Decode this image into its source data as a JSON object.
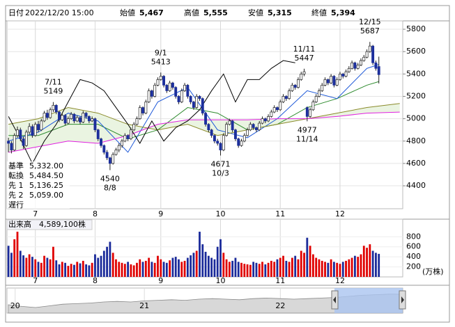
{
  "header": {
    "fields": [
      {
        "label": "日付",
        "value": "2022/12/20 15:00"
      },
      {
        "label": "始値",
        "value": "5,467"
      },
      {
        "label": "高値",
        "value": "5,555",
        "color": "#e00000"
      },
      {
        "label": "安値",
        "value": "5,315",
        "color": "#008000"
      },
      {
        "label": "終値",
        "value": "5,394"
      }
    ]
  },
  "chart_data": {
    "type": "candlestick",
    "xlim": [
      -0.5,
      132
    ],
    "ylim": [
      4195,
      5875
    ],
    "yticks": [
      4400,
      4600,
      4800,
      5000,
      5200,
      5400,
      5600,
      5800
    ],
    "grid": true,
    "up_color": "#ffffff",
    "down_color": "#1c2f9c",
    "month_ticks": [
      {
        "value": 9,
        "label": "7"
      },
      {
        "value": 29,
        "label": "8"
      },
      {
        "value": 51,
        "label": "9"
      },
      {
        "value": 71,
        "label": "10"
      },
      {
        "value": 91,
        "label": "11"
      },
      {
        "value": 111,
        "label": "12"
      }
    ],
    "ohlc": [
      [
        4800,
        4830,
        4700,
        4780
      ],
      [
        4780,
        4800,
        4690,
        4720
      ],
      [
        4720,
        4870,
        4710,
        4850
      ],
      [
        4850,
        4930,
        4830,
        4900
      ],
      [
        4900,
        4920,
        4800,
        4820
      ],
      [
        4820,
        4840,
        4730,
        4760
      ],
      [
        4760,
        4900,
        4750,
        4880
      ],
      [
        4880,
        4960,
        4860,
        4930
      ],
      [
        4930,
        4950,
        4830,
        4850
      ],
      [
        4850,
        4970,
        4840,
        4950
      ],
      [
        4950,
        4980,
        4880,
        4900
      ],
      [
        4900,
        5000,
        4890,
        4980
      ],
      [
        4980,
        5070,
        4970,
        5050
      ],
      [
        5050,
        5080,
        4990,
        5010
      ],
      [
        5010,
        5100,
        5000,
        5080
      ],
      [
        5080,
        5149,
        5060,
        5120
      ],
      [
        5120,
        5130,
        5040,
        5060
      ],
      [
        5060,
        5070,
        4970,
        4990
      ],
      [
        4990,
        5050,
        4980,
        5030
      ],
      [
        5030,
        5040,
        4940,
        4960
      ],
      [
        4960,
        5020,
        4950,
        5000
      ],
      [
        5000,
        5060,
        4990,
        5040
      ],
      [
        5040,
        5050,
        4960,
        4980
      ],
      [
        4980,
        5030,
        4970,
        5010
      ],
      [
        5010,
        5020,
        4950,
        4970
      ],
      [
        4970,
        5070,
        4960,
        5050
      ],
      [
        5050,
        5060,
        5000,
        5020
      ],
      [
        5020,
        5030,
        4960,
        4980
      ],
      [
        4980,
        5020,
        4970,
        5000
      ],
      [
        5000,
        5010,
        4880,
        4900
      ],
      [
        4900,
        4910,
        4800,
        4820
      ],
      [
        4820,
        4830,
        4740,
        4760
      ],
      [
        4760,
        4770,
        4680,
        4700
      ],
      [
        4700,
        4720,
        4630,
        4650
      ],
      [
        4650,
        4660,
        4540,
        4600
      ],
      [
        4600,
        4700,
        4590,
        4680
      ],
      [
        4680,
        4740,
        4670,
        4720
      ],
      [
        4720,
        4780,
        4700,
        4760
      ],
      [
        4760,
        4820,
        4740,
        4800
      ],
      [
        4800,
        4870,
        4790,
        4850
      ],
      [
        4850,
        4860,
        4800,
        4820
      ],
      [
        4820,
        4920,
        4810,
        4900
      ],
      [
        4900,
        4970,
        4890,
        4950
      ],
      [
        4950,
        5020,
        4940,
        5000
      ],
      [
        5000,
        5120,
        4990,
        5100
      ],
      [
        5100,
        5110,
        5030,
        5050
      ],
      [
        5050,
        5170,
        5040,
        5150
      ],
      [
        5150,
        5270,
        5140,
        5250
      ],
      [
        5250,
        5260,
        5180,
        5200
      ],
      [
        5200,
        5320,
        5190,
        5300
      ],
      [
        5300,
        5370,
        5290,
        5350
      ],
      [
        5350,
        5413,
        5340,
        5380
      ],
      [
        5380,
        5390,
        5280,
        5300
      ],
      [
        5300,
        5310,
        5230,
        5250
      ],
      [
        5250,
        5340,
        5240,
        5320
      ],
      [
        5320,
        5330,
        5260,
        5280
      ],
      [
        5280,
        5290,
        5180,
        5200
      ],
      [
        5200,
        5210,
        5130,
        5150
      ],
      [
        5150,
        5270,
        5140,
        5250
      ],
      [
        5250,
        5320,
        5240,
        5300
      ],
      [
        5300,
        5310,
        5180,
        5200
      ],
      [
        5200,
        5210,
        5130,
        5150
      ],
      [
        5150,
        5160,
        5080,
        5100
      ],
      [
        5100,
        5220,
        5090,
        5200
      ],
      [
        5200,
        5210,
        5160,
        5180
      ],
      [
        5180,
        5190,
        5030,
        5050
      ],
      [
        5050,
        5060,
        4930,
        4950
      ],
      [
        4950,
        4960,
        4880,
        4900
      ],
      [
        4900,
        4910,
        4830,
        4850
      ],
      [
        4850,
        4860,
        4780,
        4800
      ],
      [
        4800,
        4820,
        4760,
        4780
      ],
      [
        4780,
        4790,
        4671,
        4720
      ],
      [
        4720,
        4870,
        4710,
        4850
      ],
      [
        4850,
        4970,
        4840,
        4950
      ],
      [
        4950,
        5000,
        4940,
        4980
      ],
      [
        4980,
        4990,
        4880,
        4900
      ],
      [
        4900,
        4910,
        4800,
        4820
      ],
      [
        4820,
        4830,
        4740,
        4760
      ],
      [
        4760,
        4820,
        4750,
        4800
      ],
      [
        4800,
        4870,
        4790,
        4850
      ],
      [
        4850,
        4920,
        4840,
        4900
      ],
      [
        4900,
        4970,
        4890,
        4950
      ],
      [
        4950,
        4960,
        4900,
        4920
      ],
      [
        4920,
        4930,
        4880,
        4900
      ],
      [
        4900,
        4980,
        4890,
        4960
      ],
      [
        4960,
        5020,
        4950,
        5000
      ],
      [
        5000,
        5010,
        4960,
        4980
      ],
      [
        4980,
        5040,
        4970,
        5020
      ],
      [
        5020,
        5080,
        5010,
        5060
      ],
      [
        5060,
        5120,
        5050,
        5100
      ],
      [
        5100,
        5110,
        5060,
        5080
      ],
      [
        5080,
        5170,
        5070,
        5150
      ],
      [
        5150,
        5220,
        5140,
        5200
      ],
      [
        5200,
        5210,
        5160,
        5180
      ],
      [
        5180,
        5270,
        5170,
        5250
      ],
      [
        5250,
        5320,
        5240,
        5300
      ],
      [
        5300,
        5310,
        5260,
        5280
      ],
      [
        5280,
        5370,
        5270,
        5350
      ],
      [
        5350,
        5420,
        5340,
        5400
      ],
      [
        5400,
        5447,
        5380,
        5420
      ],
      [
        5100,
        5110,
        4977,
        5020
      ],
      [
        5020,
        5100,
        5010,
        5080
      ],
      [
        5080,
        5170,
        5070,
        5150
      ],
      [
        5150,
        5220,
        5140,
        5200
      ],
      [
        5200,
        5270,
        5190,
        5250
      ],
      [
        5250,
        5320,
        5240,
        5300
      ],
      [
        5300,
        5370,
        5290,
        5350
      ],
      [
        5350,
        5360,
        5300,
        5320
      ],
      [
        5320,
        5400,
        5310,
        5380
      ],
      [
        5380,
        5390,
        5280,
        5300
      ],
      [
        5300,
        5370,
        5290,
        5350
      ],
      [
        5350,
        5420,
        5340,
        5400
      ],
      [
        5400,
        5410,
        5360,
        5380
      ],
      [
        5380,
        5440,
        5370,
        5420
      ],
      [
        5420,
        5470,
        5410,
        5450
      ],
      [
        5450,
        5520,
        5440,
        5500
      ],
      [
        5500,
        5510,
        5430,
        5450
      ],
      [
        5450,
        5500,
        5440,
        5480
      ],
      [
        5480,
        5540,
        5470,
        5520
      ],
      [
        5520,
        5570,
        5510,
        5550
      ],
      [
        5550,
        5620,
        5540,
        5600
      ],
      [
        5600,
        5687,
        5590,
        5650
      ],
      [
        5650,
        5660,
        5480,
        5500
      ],
      [
        5500,
        5520,
        5430,
        5450
      ],
      [
        5467,
        5555,
        5315,
        5394
      ]
    ],
    "annotations": [
      {
        "index": 15,
        "date": "7/11",
        "value": 5149,
        "position": "above"
      },
      {
        "index": 34,
        "date": "8/8",
        "value": 4540,
        "position": "below"
      },
      {
        "index": 51,
        "date": "9/1",
        "value": 5413,
        "position": "above"
      },
      {
        "index": 71,
        "date": "10/3",
        "value": 4671,
        "position": "below"
      },
      {
        "index": 99,
        "date": "11/11",
        "value": 5447,
        "position": "above"
      },
      {
        "index": 100,
        "date": "11/14",
        "value": 4977,
        "position": "below"
      },
      {
        "index": 121,
        "date": "12/15",
        "value": 5687,
        "position": "above"
      }
    ],
    "series": [
      {
        "name": "基準",
        "color": "#2e8b2e",
        "value": 5332,
        "value_label": "5,332.00",
        "x": [
          0,
          10,
          20,
          30,
          40,
          50,
          60,
          70,
          80,
          90,
          100,
          110,
          120,
          124
        ],
        "values": [
          4850,
          4850,
          4950,
          4950,
          4820,
          4900,
          5100,
          5050,
          4900,
          4950,
          5100,
          5180,
          5300,
          5332
        ]
      },
      {
        "name": "転換",
        "color": "#1a56d8",
        "value": 5484.5,
        "value_label": "5,484.50",
        "x": [
          0,
          10,
          20,
          30,
          40,
          50,
          60,
          70,
          80,
          90,
          100,
          110,
          120,
          124
        ],
        "values": [
          4800,
          4880,
          5050,
          4980,
          4700,
          5150,
          5280,
          4900,
          4830,
          5000,
          5250,
          5180,
          5450,
          5484.5
        ]
      },
      {
        "name": "先 1",
        "color": "#8a8a2a",
        "value": 5136.25,
        "value_label": "5,136.25",
        "x": [
          0,
          10,
          20,
          30,
          40,
          50,
          60,
          70,
          80,
          90,
          100,
          110,
          120,
          131
        ],
        "values": [
          4950,
          5000,
          5100,
          5050,
          4950,
          4900,
          4950,
          4850,
          4900,
          4950,
          5000,
          5050,
          5100,
          5136.25
        ]
      },
      {
        "name": "先 2",
        "color": "#e020e0",
        "value": 5059,
        "value_label": "5,059.00",
        "x": [
          0,
          10,
          20,
          30,
          40,
          50,
          60,
          70,
          80,
          90,
          100,
          110,
          120,
          131
        ],
        "values": [
          4700,
          4750,
          4800,
          4780,
          4850,
          4950,
          4990,
          4990,
          4990,
          5000,
          5000,
          5020,
          5050,
          5059
        ]
      },
      {
        "name": "遅行",
        "color": "#000000",
        "x": [
          0,
          4,
          8,
          12,
          16,
          20,
          24,
          28,
          32,
          36,
          40,
          44,
          48,
          52,
          56,
          60,
          64,
          68,
          72,
          76,
          80,
          84,
          88,
          92,
          96
        ],
        "values": [
          5020,
          4820,
          4600,
          4800,
          4950,
          5150,
          5350,
          5320,
          5250,
          5100,
          4950,
          4780,
          4980,
          4800,
          4920,
          4980,
          5080,
          5250,
          5400,
          5150,
          5350,
          5350,
          5450,
          5520,
          5500
        ]
      }
    ],
    "volume": {
      "caption": "出来高",
      "today": "4,589,100株",
      "unit": "(万株)",
      "ylim": [
        0,
        1150
      ],
      "yticks": [
        200,
        400,
        600,
        800
      ],
      "up_color": "#e00000",
      "down_color": "#1a2a9a",
      "values": [
        620,
        480,
        750,
        900,
        520,
        430,
        380,
        450,
        400,
        350,
        300,
        280,
        420,
        380,
        350,
        600,
        330,
        250,
        300,
        280,
        220,
        260,
        240,
        300,
        270,
        320,
        250,
        230,
        280,
        450,
        380,
        420,
        520,
        600,
        700,
        480,
        350,
        300,
        280,
        260,
        300,
        250,
        230,
        280,
        350,
        300,
        320,
        380,
        300,
        280,
        420,
        350,
        300,
        280,
        330,
        380,
        400,
        350,
        300,
        320,
        380,
        430,
        480,
        520,
        900,
        650,
        500,
        420,
        380,
        350,
        600,
        750,
        480,
        350,
        300,
        320,
        380,
        300,
        280,
        260,
        250,
        240,
        300,
        280,
        260,
        300,
        250,
        280,
        320,
        300,
        350,
        380,
        420,
        320,
        300,
        380,
        420,
        350,
        520,
        480,
        780,
        620,
        450,
        380,
        350,
        320,
        300,
        280,
        350,
        300,
        280,
        260,
        300,
        320,
        350,
        380,
        420,
        400,
        450,
        620,
        580,
        650,
        520,
        480,
        458.91
      ]
    },
    "navigator": {
      "ylim": [
        2000,
        6500
      ],
      "ticks": [
        {
          "value": 0.5,
          "label": "20"
        },
        {
          "value": 10,
          "label": "21"
        },
        {
          "value": 20,
          "label": "22"
        }
      ],
      "values": [
        3500,
        3200,
        3000,
        3300,
        3600,
        3700,
        3800,
        4000,
        4100,
        4000,
        4200,
        4300,
        4400,
        4300,
        4500,
        4600,
        4500,
        4400,
        4600,
        4700,
        4600,
        4500,
        4600,
        4700,
        4800,
        5000,
        5200,
        5300,
        5400,
        5394
      ]
    }
  }
}
